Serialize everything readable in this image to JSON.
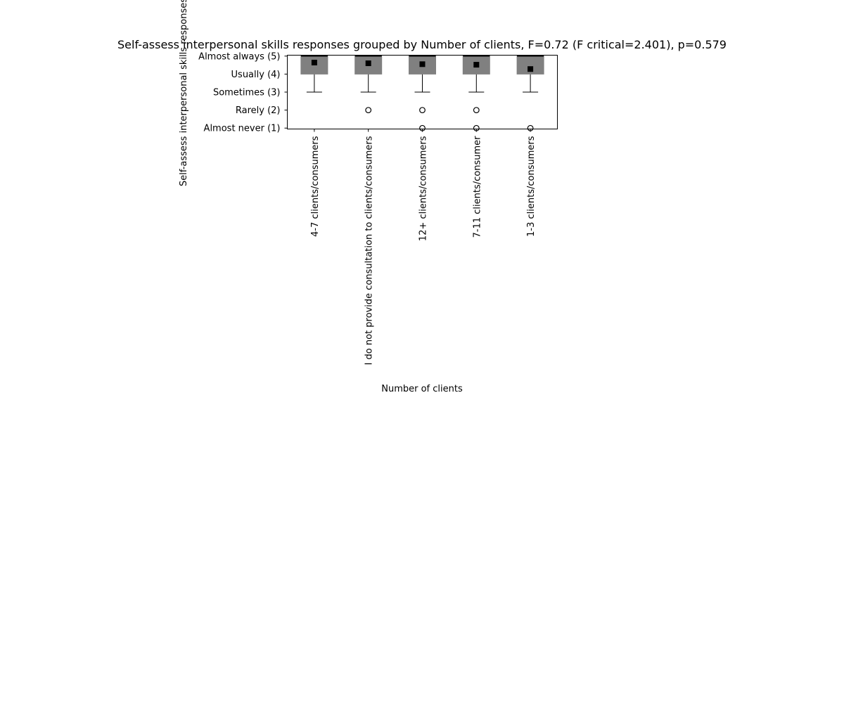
{
  "chart_data": {
    "type": "box",
    "title": "Self-assess interpersonal skills responses grouped by Number of clients, F=0.72 (F critical=2.401), p=0.579",
    "xlabel": "Number of clients",
    "ylabel": "Self-assess interpersonal skills responses",
    "ylim": [
      0.95,
      5.05
    ],
    "y_ticks": [
      {
        "value": 5,
        "label": "Almost always (5)"
      },
      {
        "value": 4,
        "label": "Usually (4)"
      },
      {
        "value": 3,
        "label": "Sometimes (3)"
      },
      {
        "value": 2,
        "label": "Rarely (2)"
      },
      {
        "value": 1,
        "label": "Almost never (1)"
      }
    ],
    "categories": [
      "4-7 clients/consumers",
      "I do not provide consultation to clients/consumers",
      "12+ clients/consumers",
      "7-11 clients/consumer",
      "1-3 clients/consumers"
    ],
    "boxes": [
      {
        "whisker_low": 3,
        "q1": 4,
        "median": 5,
        "q3": 5,
        "whisker_high": 5,
        "mean": 4.64,
        "outliers": []
      },
      {
        "whisker_low": 3,
        "q1": 4,
        "median": 5,
        "q3": 5,
        "whisker_high": 5,
        "mean": 4.6,
        "outliers": [
          2
        ]
      },
      {
        "whisker_low": 3,
        "q1": 4,
        "median": 5,
        "q3": 5,
        "whisker_high": 5,
        "mean": 4.55,
        "outliers": [
          2,
          1
        ]
      },
      {
        "whisker_low": 3,
        "q1": 4,
        "median": 5,
        "q3": 5,
        "whisker_high": 5,
        "mean": 4.52,
        "outliers": [
          2,
          1
        ]
      },
      {
        "whisker_low": 3,
        "q1": 4,
        "median": 5,
        "q3": 5,
        "whisker_high": 5,
        "mean": 4.28,
        "outliers": [
          1
        ]
      }
    ],
    "colors": {
      "box": "#808080",
      "line": "#000000",
      "mean_marker": "#000000"
    },
    "grid": false,
    "legend": "none"
  }
}
